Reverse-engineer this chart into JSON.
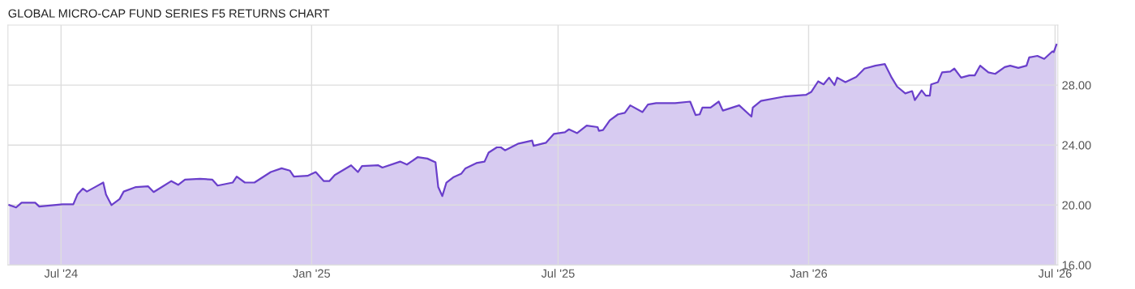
{
  "chart_data": {
    "type": "area",
    "title": "GLOBAL MICRO-CAP FUND SERIES F5 RETURNS CHART",
    "x": [
      "2024-05-24",
      "2024-05-29",
      "2024-06-02",
      "2024-06-12",
      "2024-06-15",
      "2024-07-02",
      "2024-07-10",
      "2024-07-13",
      "2024-07-17",
      "2024-07-20",
      "2024-07-27",
      "2024-08-01",
      "2024-08-03",
      "2024-08-07",
      "2024-08-13",
      "2024-08-16",
      "2024-08-25",
      "2024-09-03",
      "2024-09-07",
      "2024-09-13",
      "2024-09-20",
      "2024-09-25",
      "2024-09-30",
      "2024-10-11",
      "2024-10-20",
      "2024-10-24",
      "2024-11-04",
      "2024-11-07",
      "2024-11-13",
      "2024-11-20",
      "2024-12-02",
      "2024-12-10",
      "2024-12-16",
      "2024-12-19",
      "2024-12-29",
      "2025-01-04",
      "2025-01-10",
      "2025-01-14",
      "2025-01-18",
      "2025-01-30",
      "2025-02-04",
      "2025-02-07",
      "2025-02-19",
      "2025-02-22",
      "2025-03-07",
      "2025-03-12",
      "2025-03-20",
      "2025-03-27",
      "2025-04-02",
      "2025-04-04",
      "2025-04-07",
      "2025-04-10",
      "2025-04-15",
      "2025-04-21",
      "2025-04-24",
      "2025-05-02",
      "2025-05-08",
      "2025-05-11",
      "2025-05-17",
      "2025-05-20",
      "2025-05-23",
      "2025-06-02",
      "2025-06-12",
      "2025-06-13",
      "2025-06-22",
      "2025-06-28",
      "2025-07-06",
      "2025-07-09",
      "2025-07-15",
      "2025-07-22",
      "2025-07-30",
      "2025-07-31",
      "2025-08-03",
      "2025-08-08",
      "2025-08-14",
      "2025-08-19",
      "2025-08-23",
      "2025-09-01",
      "2025-09-05",
      "2025-09-11",
      "2025-09-25",
      "2025-10-06",
      "2025-10-10",
      "2025-10-13",
      "2025-10-15",
      "2025-10-21",
      "2025-10-27",
      "2025-10-30",
      "2025-11-11",
      "2025-11-20",
      "2025-11-21",
      "2025-11-27",
      "2025-12-15",
      "2025-12-30",
      "2026-01-03",
      "2026-01-08",
      "2026-01-12",
      "2026-01-16",
      "2026-01-20",
      "2026-01-22",
      "2026-01-28",
      "2026-02-05",
      "2026-02-11",
      "2026-02-19",
      "2026-02-26",
      "2026-03-03",
      "2026-03-07",
      "2026-03-13",
      "2026-03-18",
      "2026-03-20",
      "2026-03-25",
      "2026-03-28",
      "2026-03-31",
      "2026-04-01",
      "2026-04-06",
      "2026-04-09",
      "2026-04-15",
      "2026-04-18",
      "2026-04-23",
      "2026-04-29",
      "2026-05-03",
      "2026-05-07",
      "2026-05-13",
      "2026-05-18",
      "2026-05-25",
      "2026-05-29",
      "2026-06-04",
      "2026-06-10",
      "2026-06-12",
      "2026-06-18",
      "2026-06-23",
      "2026-06-29",
      "2026-06-30",
      "2026-07-02"
    ],
    "series": [
      {
        "color": "#6a3fcb",
        "values": [
          20.0,
          19.84,
          20.16,
          20.16,
          19.9,
          20.05,
          20.05,
          20.7,
          21.1,
          20.9,
          21.25,
          21.5,
          20.7,
          20.0,
          20.4,
          20.9,
          21.2,
          21.25,
          20.87,
          21.2,
          21.6,
          21.35,
          21.7,
          21.75,
          21.7,
          21.3,
          21.5,
          21.9,
          21.5,
          21.5,
          22.2,
          22.45,
          22.3,
          21.9,
          21.95,
          22.2,
          21.6,
          21.6,
          22.0,
          22.65,
          22.2,
          22.6,
          22.65,
          22.5,
          22.9,
          22.7,
          23.2,
          23.1,
          22.85,
          21.2,
          20.6,
          21.5,
          21.85,
          22.1,
          22.45,
          22.8,
          22.9,
          23.5,
          23.85,
          23.85,
          23.65,
          24.1,
          24.3,
          23.95,
          24.15,
          24.75,
          24.85,
          25.05,
          24.8,
          25.3,
          25.2,
          24.95,
          25.0,
          25.65,
          26.05,
          26.15,
          26.65,
          26.2,
          26.7,
          26.8,
          26.8,
          26.9,
          26.0,
          26.05,
          26.5,
          26.5,
          26.9,
          26.3,
          26.65,
          25.9,
          26.5,
          26.95,
          27.25,
          27.35,
          27.55,
          28.25,
          28.05,
          28.5,
          28.0,
          28.5,
          28.2,
          28.55,
          29.1,
          29.3,
          29.4,
          28.5,
          27.9,
          27.45,
          27.6,
          27.0,
          27.65,
          27.3,
          27.3,
          28.05,
          28.2,
          28.85,
          28.9,
          29.1,
          28.5,
          28.65,
          28.65,
          29.3,
          28.85,
          28.75,
          29.2,
          29.3,
          29.15,
          29.3,
          29.85,
          29.95,
          29.75,
          30.25,
          30.2,
          30.7
        ]
      }
    ],
    "xlim": [
      "2024-05-23",
      "2026-07-03"
    ],
    "xticks": [
      {
        "value": "2024-07-01",
        "label": "Jul '24"
      },
      {
        "value": "2025-01-01",
        "label": "Jan '25"
      },
      {
        "value": "2025-07-01",
        "label": "Jul '25"
      },
      {
        "value": "2026-01-01",
        "label": "Jan '26"
      },
      {
        "value": "2026-07-01",
        "label": "Jul '26"
      }
    ],
    "ylim": [
      16,
      32
    ],
    "yticks": [
      {
        "value": 16,
        "label": "16.00"
      },
      {
        "value": 20,
        "label": "20.00"
      },
      {
        "value": 24,
        "label": "24.00"
      },
      {
        "value": 28,
        "label": "28.00"
      }
    ],
    "grid": true,
    "legend": false,
    "marker": "none",
    "line_style": "solid"
  }
}
